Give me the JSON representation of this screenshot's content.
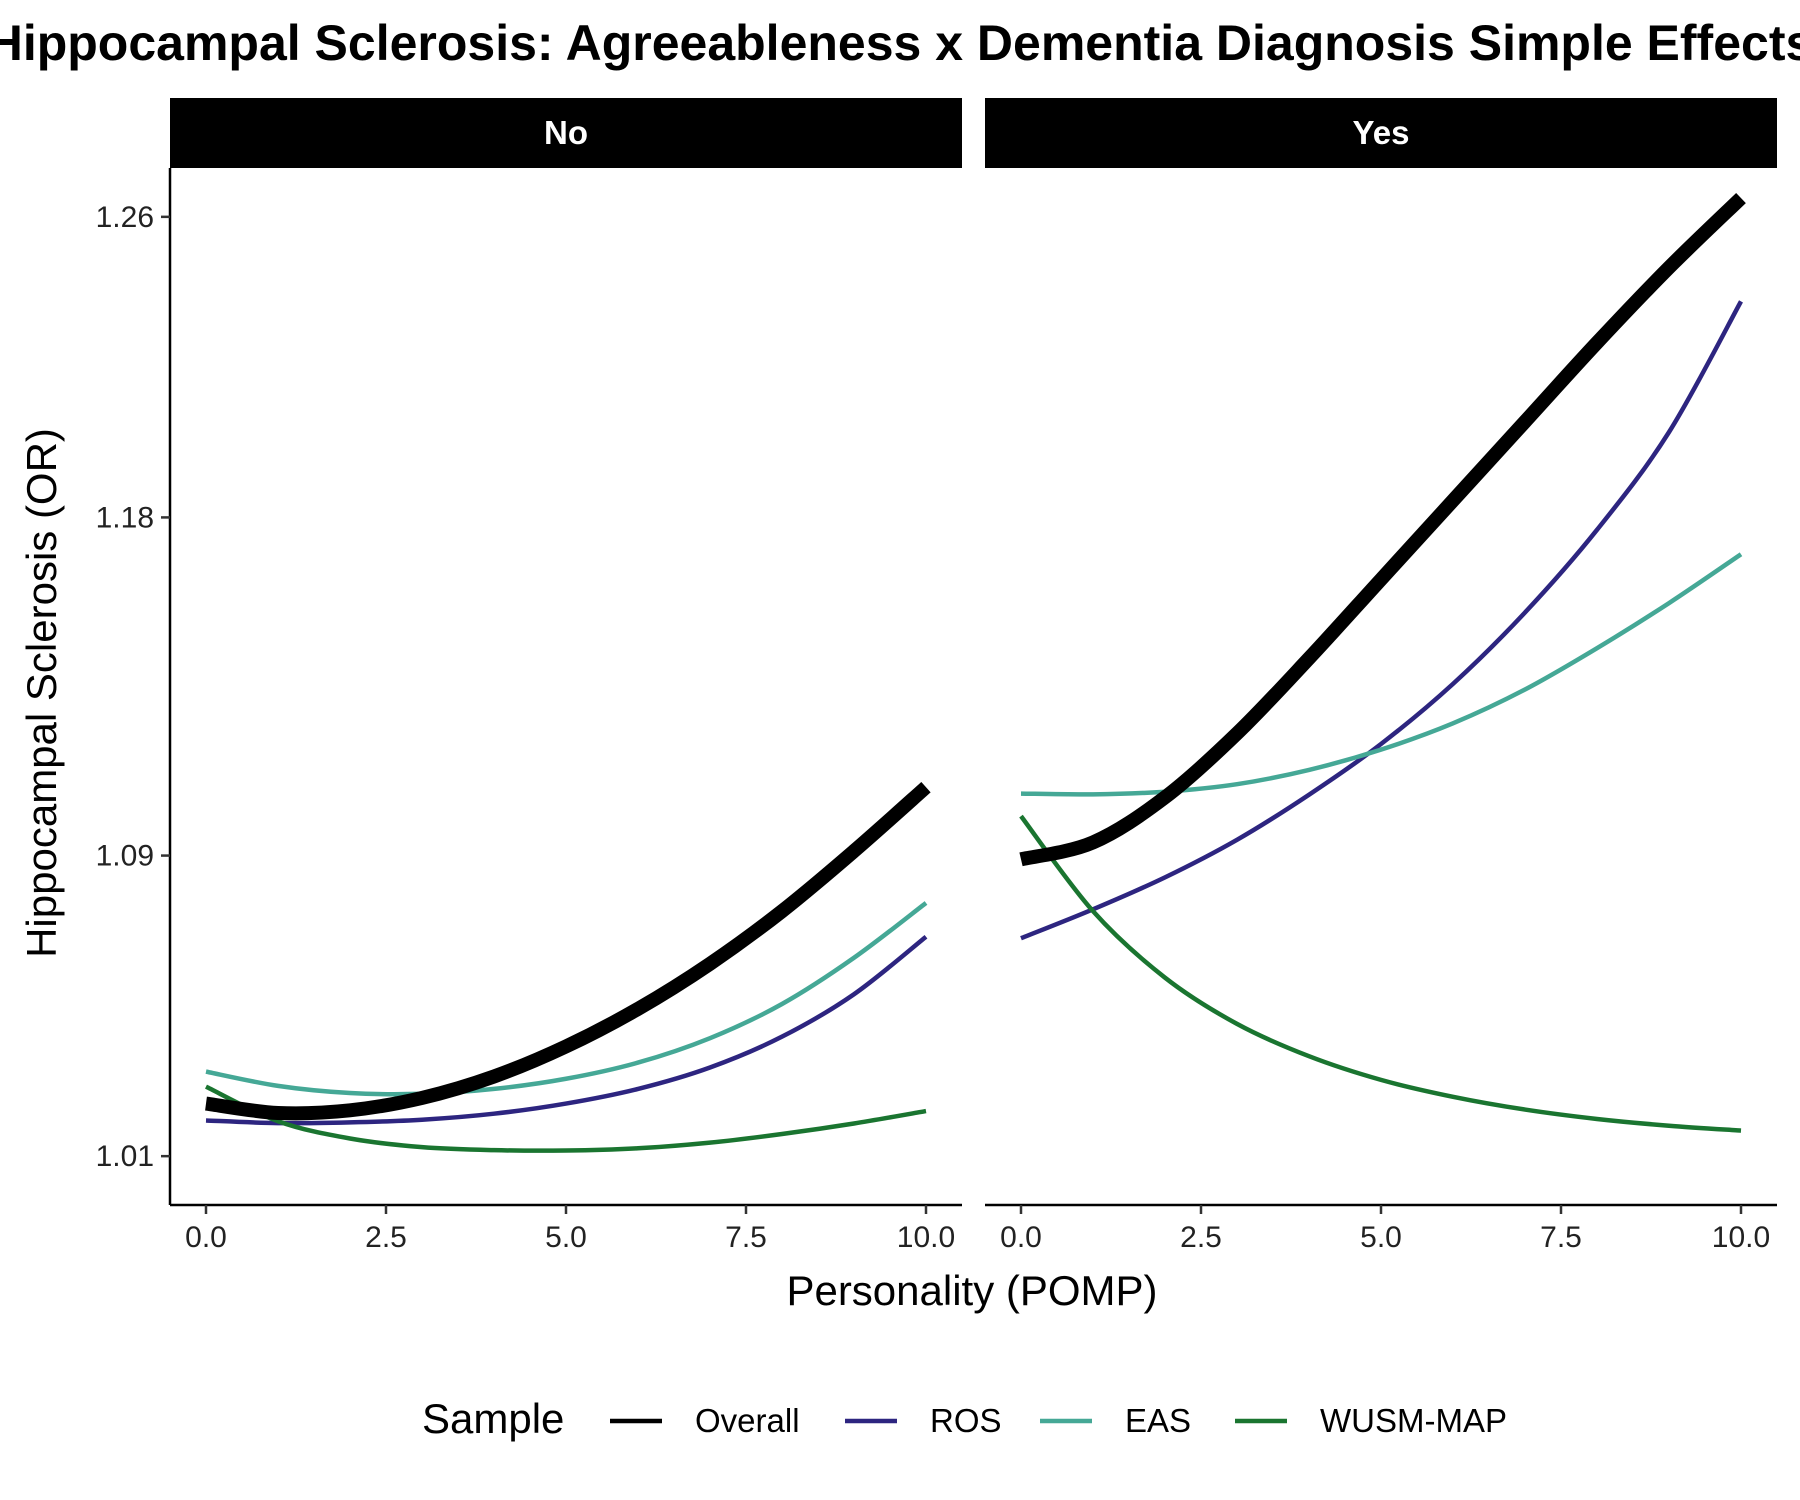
{
  "chart_data": {
    "type": "line",
    "title": "Hippocampal Sclerosis: Agreeableness x Dementia Diagnosis Simple Effects",
    "xlabel": "Personality (POMP)",
    "ylabel": "Hippocampal Sclerosis (OR)",
    "xlim": [
      -0.5,
      10.5
    ],
    "ylim": [
      0.997,
      1.273
    ],
    "x_ticks": [
      0,
      2.5,
      5,
      7.5,
      10
    ],
    "x_tick_labels": [
      "0.0",
      "2.5",
      "5.0",
      "7.5",
      "10.0"
    ],
    "y_ticks": [
      1.01,
      1.09,
      1.18,
      1.26
    ],
    "y_tick_labels": [
      "1.01",
      "1.09",
      "1.18",
      "1.26"
    ],
    "grid": false,
    "legend": {
      "title": "Sample",
      "position": "bottom",
      "entries": [
        "Overall",
        "ROS",
        "EAS",
        "WUSM-MAP"
      ]
    },
    "colors": {
      "Overall": "#000000",
      "ROS": "#2d2580",
      "EAS": "#45a896",
      "WUSM-MAP": "#1a7530"
    },
    "x": [
      0,
      1,
      2,
      3,
      4,
      5,
      6,
      7,
      8,
      9,
      10
    ],
    "panels": [
      {
        "label": "No",
        "series": [
          {
            "name": "Overall",
            "values": [
              1.024,
              1.0215,
              1.0222,
              1.0255,
              1.0312,
              1.0392,
              1.0492,
              1.0612,
              1.0752,
              1.0912,
              1.1082
            ]
          },
          {
            "name": "ROS",
            "values": [
              1.0195,
              1.0188,
              1.019,
              1.0197,
              1.0213,
              1.024,
              1.0279,
              1.0336,
              1.0418,
              1.0531,
              1.0684
            ]
          },
          {
            "name": "EAS",
            "values": [
              1.0325,
              1.0287,
              1.0268,
              1.0266,
              1.0279,
              1.0306,
              1.0349,
              1.0414,
              1.0505,
              1.0628,
              1.0774
            ]
          },
          {
            "name": "WUSM-MAP",
            "values": [
              1.0285,
              1.0193,
              1.0147,
              1.0124,
              1.0116,
              1.0115,
              1.0121,
              1.0136,
              1.0159,
              1.0187,
              1.022
            ]
          }
        ]
      },
      {
        "label": "Yes",
        "series": [
          {
            "name": "Overall",
            "values": [
              1.089,
              1.0935,
              1.1055,
              1.1225,
              1.1425,
              1.1635,
              1.1845,
              1.2055,
              1.2265,
              1.2465,
              1.265
            ]
          },
          {
            "name": "ROS",
            "values": [
              1.068,
              1.0757,
              1.0842,
              1.0942,
              1.1062,
              1.1197,
              1.1357,
              1.1547,
              1.1767,
              1.2027,
              1.2375
            ]
          },
          {
            "name": "EAS",
            "values": [
              1.1065,
              1.1063,
              1.107,
              1.109,
              1.1128,
              1.1182,
              1.1252,
              1.1342,
              1.1452,
              1.1572,
              1.1702
            ]
          },
          {
            "name": "WUSM-MAP",
            "values": [
              1.1005,
              1.0752,
              1.0575,
              1.0452,
              1.0366,
              1.0303,
              1.0258,
              1.0224,
              1.0199,
              1.0181,
              1.0168
            ]
          }
        ]
      }
    ]
  }
}
